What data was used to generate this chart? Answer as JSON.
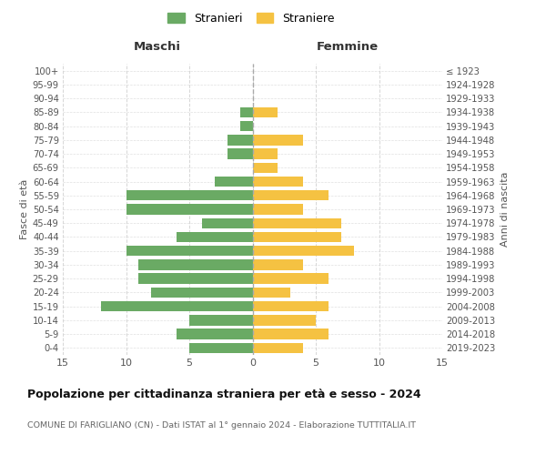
{
  "age_groups": [
    "0-4",
    "5-9",
    "10-14",
    "15-19",
    "20-24",
    "25-29",
    "30-34",
    "35-39",
    "40-44",
    "45-49",
    "50-54",
    "55-59",
    "60-64",
    "65-69",
    "70-74",
    "75-79",
    "80-84",
    "85-89",
    "90-94",
    "95-99",
    "100+"
  ],
  "birth_years": [
    "2019-2023",
    "2014-2018",
    "2009-2013",
    "2004-2008",
    "1999-2003",
    "1994-1998",
    "1989-1993",
    "1984-1988",
    "1979-1983",
    "1974-1978",
    "1969-1973",
    "1964-1968",
    "1959-1963",
    "1954-1958",
    "1949-1953",
    "1944-1948",
    "1939-1943",
    "1934-1938",
    "1929-1933",
    "1924-1928",
    "≤ 1923"
  ],
  "maschi": [
    5,
    6,
    5,
    12,
    8,
    9,
    9,
    10,
    6,
    4,
    10,
    10,
    3,
    0,
    2,
    2,
    1,
    1,
    0,
    0,
    0
  ],
  "femmine": [
    4,
    6,
    5,
    6,
    3,
    6,
    4,
    8,
    7,
    7,
    4,
    6,
    4,
    2,
    2,
    4,
    0,
    2,
    0,
    0,
    0
  ],
  "maschi_color": "#6aaa64",
  "femmine_color": "#f5c242",
  "bg_color": "#ffffff",
  "grid_color": "#cccccc",
  "title": "Popolazione per cittadinanza straniera per età e sesso - 2024",
  "subtitle": "COMUNE DI FARIGLIANO (CN) - Dati ISTAT al 1° gennaio 2024 - Elaborazione TUTTITALIA.IT",
  "xlabel_left": "Maschi",
  "xlabel_right": "Femmine",
  "ylabel_left": "Fasce di età",
  "ylabel_right": "Anni di nascita",
  "legend_maschi": "Stranieri",
  "legend_femmine": "Straniere",
  "xlim": 15
}
